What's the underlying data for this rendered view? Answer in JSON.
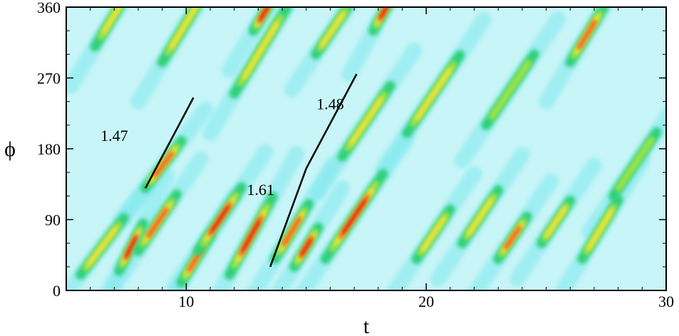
{
  "chart_data": {
    "type": "heatmap",
    "title": "",
    "xlabel": "t",
    "ylabel": "ϕ",
    "xlim": [
      5,
      30
    ],
    "ylim": [
      0,
      360
    ],
    "x_ticks": [
      10,
      20,
      30
    ],
    "y_ticks": [
      0,
      90,
      180,
      270,
      360
    ],
    "x_tick_labels": [
      "10",
      "20",
      "30"
    ],
    "y_tick_labels": [
      "0",
      "90",
      "180",
      "270",
      "360"
    ],
    "grid": false,
    "colormap": [
      "#ffffff",
      "#c8f5f7",
      "#7fe9ef",
      "#2fd07a",
      "#9be34a",
      "#f2e23a",
      "#ff3c1a",
      "#d00000"
    ],
    "ridges": [
      {
        "t0": 5.6,
        "phi0": 20,
        "slope": 40,
        "len": 1.8,
        "peak": 0.7
      },
      {
        "t0": 7.2,
        "phi0": 25,
        "slope": 60,
        "len": 1.0,
        "peak": 1.0
      },
      {
        "t0": 8.0,
        "phi0": 50,
        "slope": 45,
        "len": 1.6,
        "peak": 0.8
      },
      {
        "t0": 8.3,
        "phi0": 130,
        "slope": 40,
        "len": 1.5,
        "peak": 0.75
      },
      {
        "t0": 9.8,
        "phi0": 10,
        "slope": 50,
        "len": 1.2,
        "peak": 0.85
      },
      {
        "t0": 10.5,
        "phi0": 50,
        "slope": 45,
        "len": 1.8,
        "peak": 0.9
      },
      {
        "t0": 11.8,
        "phi0": 20,
        "slope": 55,
        "len": 1.8,
        "peak": 1.0
      },
      {
        "t0": 12.8,
        "phi0": 330,
        "slope": 50,
        "len": 0.9,
        "peak": 1.0
      },
      {
        "t0": 13.7,
        "phi0": 40,
        "slope": 50,
        "len": 1.4,
        "peak": 0.85
      },
      {
        "t0": 14.5,
        "phi0": 30,
        "slope": 50,
        "len": 1.0,
        "peak": 1.0
      },
      {
        "t0": 15.8,
        "phi0": 40,
        "slope": 45,
        "len": 2.4,
        "peak": 1.0
      },
      {
        "t0": 12.0,
        "phi0": 250,
        "slope": 50,
        "len": 2.2,
        "peak": 0.6
      },
      {
        "t0": 15.4,
        "phi0": 300,
        "slope": 45,
        "len": 1.4,
        "peak": 0.7
      },
      {
        "t0": 17.8,
        "phi0": 330,
        "slope": 55,
        "len": 1.0,
        "peak": 0.95
      },
      {
        "t0": 19.6,
        "phi0": 40,
        "slope": 45,
        "len": 1.4,
        "peak": 0.7
      },
      {
        "t0": 21.5,
        "phi0": 60,
        "slope": 45,
        "len": 1.5,
        "peak": 0.7
      },
      {
        "t0": 23.0,
        "phi0": 40,
        "slope": 45,
        "len": 1.2,
        "peak": 0.75
      },
      {
        "t0": 24.8,
        "phi0": 60,
        "slope": 45,
        "len": 1.2,
        "peak": 0.7
      },
      {
        "t0": 26.0,
        "phi0": 290,
        "slope": 50,
        "len": 1.4,
        "peak": 0.85
      },
      {
        "t0": 26.5,
        "phi0": 40,
        "slope": 50,
        "len": 1.5,
        "peak": 0.65
      },
      {
        "t0": 19.2,
        "phi0": 200,
        "slope": 45,
        "len": 2.2,
        "peak": 0.55
      },
      {
        "t0": 22.5,
        "phi0": 210,
        "slope": 45,
        "len": 2.0,
        "peak": 0.5
      },
      {
        "t0": 9.0,
        "phi0": 290,
        "slope": 50,
        "len": 2.0,
        "peak": 0.6
      },
      {
        "t0": 6.2,
        "phi0": 310,
        "slope": 50,
        "len": 2.0,
        "peak": 0.55
      },
      {
        "t0": 16.5,
        "phi0": 170,
        "slope": 45,
        "len": 2.0,
        "peak": 0.55
      },
      {
        "t0": 27.8,
        "phi0": 120,
        "slope": 45,
        "len": 1.8,
        "peak": 0.45
      }
    ],
    "phase_lines": [
      {
        "label": "1.47",
        "points": [
          [
            8.3,
            130
          ],
          [
            10.3,
            245
          ]
        ]
      },
      {
        "label": "1.61",
        "points": [
          [
            13.5,
            30
          ],
          [
            15.0,
            155
          ]
        ]
      },
      {
        "label": "1.48",
        "points": [
          [
            15.0,
            155
          ],
          [
            17.1,
            275
          ]
        ]
      }
    ],
    "annotations": [
      {
        "text": "1.47",
        "t": 7.0,
        "phi": 190
      },
      {
        "text": "1.61",
        "t": 13.1,
        "phi": 121
      },
      {
        "text": "1.48",
        "t": 16.0,
        "phi": 230
      }
    ]
  }
}
